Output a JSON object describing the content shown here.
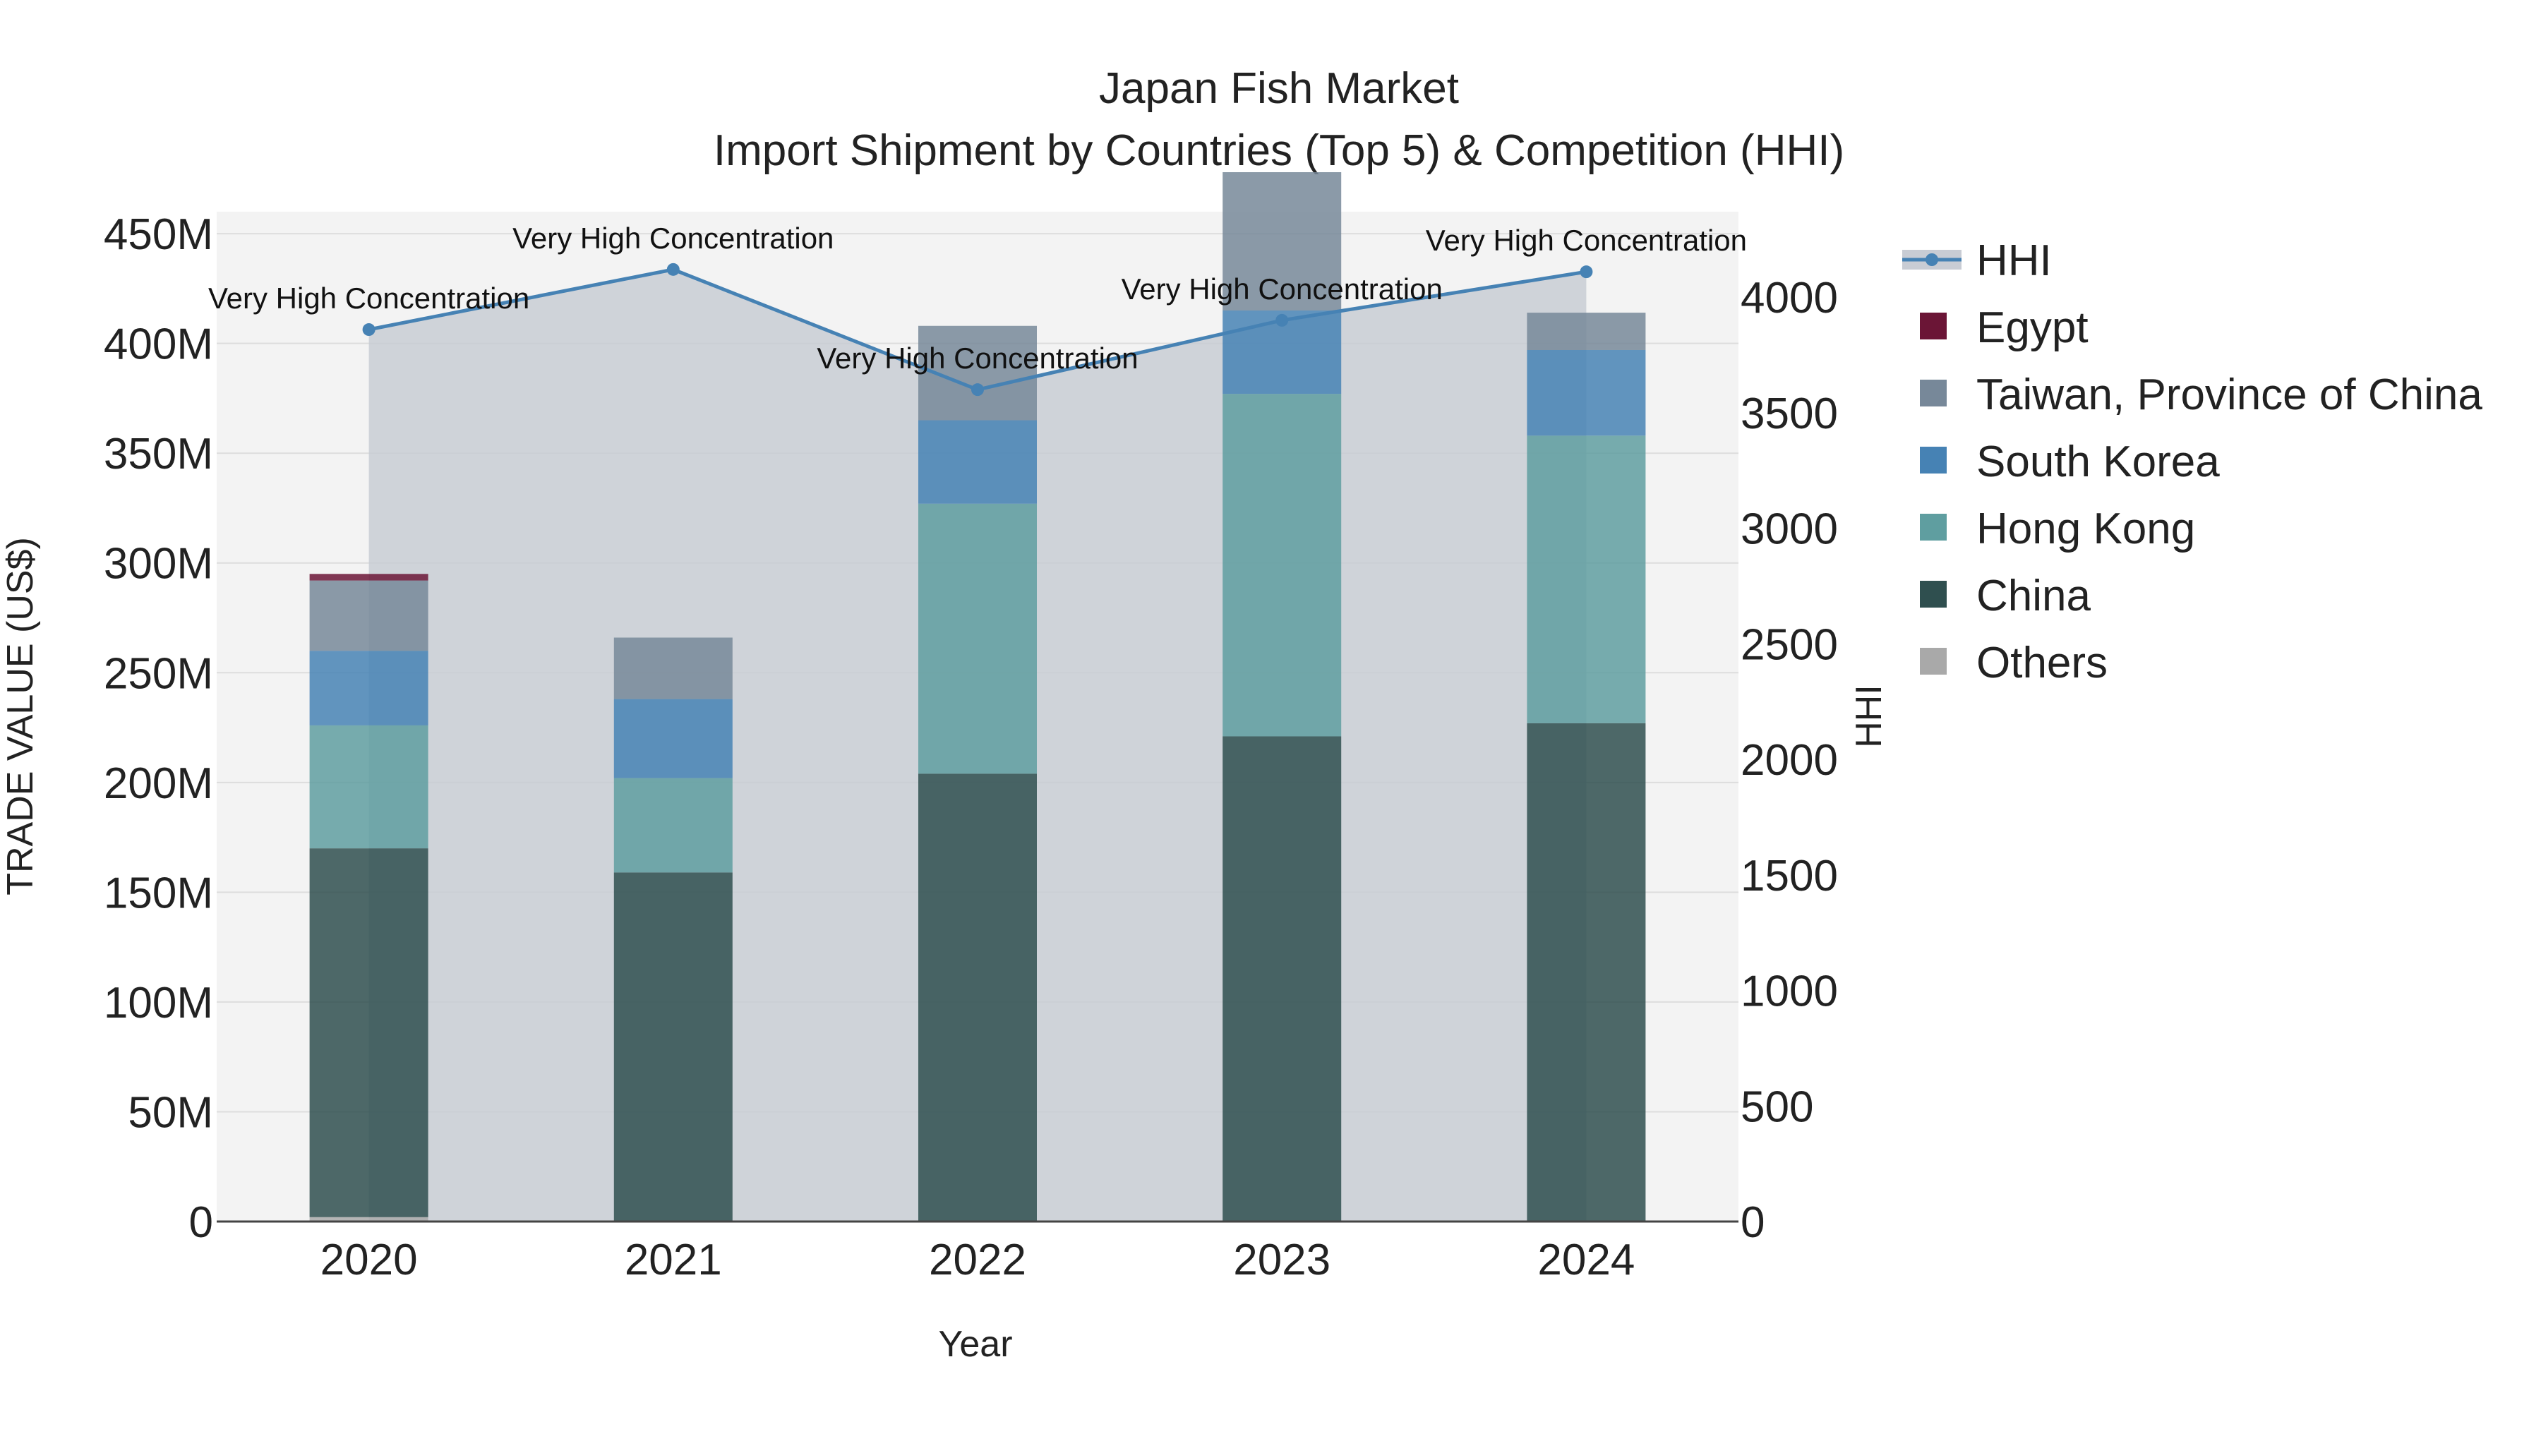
{
  "chart_data": {
    "type": "bar",
    "title": "Japan Fish Market",
    "subtitle": "Import Shipment by Countries (Top 5) & Competition (HHI)",
    "xlabel": "Year",
    "ylabel": "TRADE VALUE (US$)",
    "y2label": "HHI",
    "categories": [
      "2020",
      "2021",
      "2022",
      "2023",
      "2024"
    ],
    "ylim": [
      0,
      460000000
    ],
    "yticks": [
      {
        "value": 0,
        "label": "0"
      },
      {
        "value": 50000000,
        "label": "50M"
      },
      {
        "value": 100000000,
        "label": "100M"
      },
      {
        "value": 150000000,
        "label": "150M"
      },
      {
        "value": 200000000,
        "label": "200M"
      },
      {
        "value": 250000000,
        "label": "250M"
      },
      {
        "value": 300000000,
        "label": "300M"
      },
      {
        "value": 350000000,
        "label": "350M"
      },
      {
        "value": 400000000,
        "label": "400M"
      },
      {
        "value": 450000000,
        "label": "450M"
      }
    ],
    "y2lim": [
      0,
      4370
    ],
    "y2ticks": [
      {
        "value": 0,
        "label": "0"
      },
      {
        "value": 500,
        "label": "500"
      },
      {
        "value": 1000,
        "label": "1000"
      },
      {
        "value": 1500,
        "label": "1500"
      },
      {
        "value": 2000,
        "label": "2000"
      },
      {
        "value": 2500,
        "label": "2500"
      },
      {
        "value": 3000,
        "label": "3000"
      },
      {
        "value": 3500,
        "label": "3500"
      },
      {
        "value": 4000,
        "label": "4000"
      }
    ],
    "series": [
      {
        "name": "Others",
        "color": "#a9a9a9",
        "values": [
          2000000,
          0,
          0,
          0,
          0
        ]
      },
      {
        "name": "China",
        "color": "#2f4f4f",
        "values": [
          168000000,
          159000000,
          204000000,
          221000000,
          227000000
        ]
      },
      {
        "name": "Hong Kong",
        "color": "#5f9ea0",
        "values": [
          56000000,
          43000000,
          123000000,
          156000000,
          131000000
        ]
      },
      {
        "name": "South Korea",
        "color": "#4682b4",
        "values": [
          34000000,
          36000000,
          38000000,
          38000000,
          39000000
        ]
      },
      {
        "name": "Taiwan, Province of China",
        "color": "#778899",
        "values": [
          32000000,
          28000000,
          43000000,
          63000000,
          17000000
        ]
      },
      {
        "name": "Egypt",
        "color": "#6b1536",
        "values": [
          3000000,
          0,
          0,
          0,
          0
        ]
      }
    ],
    "hhi": {
      "name": "HHI",
      "color": "#4682b4",
      "area_color": "#c8ccd4",
      "values": [
        3860,
        4120,
        3600,
        3900,
        4110
      ],
      "labels": [
        "Very High Concentration",
        "Very High Concentration",
        "Very High Concentration",
        "Very High Concentration",
        "Very High Concentration"
      ]
    },
    "legend": {
      "position": "top-right",
      "items": [
        {
          "name": "HHI",
          "color": "#4682b4",
          "kind": "line"
        },
        {
          "name": "Egypt",
          "color": "#6b1536",
          "kind": "box"
        },
        {
          "name": "Taiwan, Province of China",
          "color": "#778899",
          "kind": "box"
        },
        {
          "name": "South Korea",
          "color": "#4682b4",
          "kind": "box"
        },
        {
          "name": "Hong Kong",
          "color": "#5f9ea0",
          "kind": "box"
        },
        {
          "name": "China",
          "color": "#2f4f4f",
          "kind": "box"
        },
        {
          "name": "Others",
          "color": "#a9a9a9",
          "kind": "box"
        }
      ]
    },
    "plot_background": "#f3f3f3",
    "grid": true
  }
}
